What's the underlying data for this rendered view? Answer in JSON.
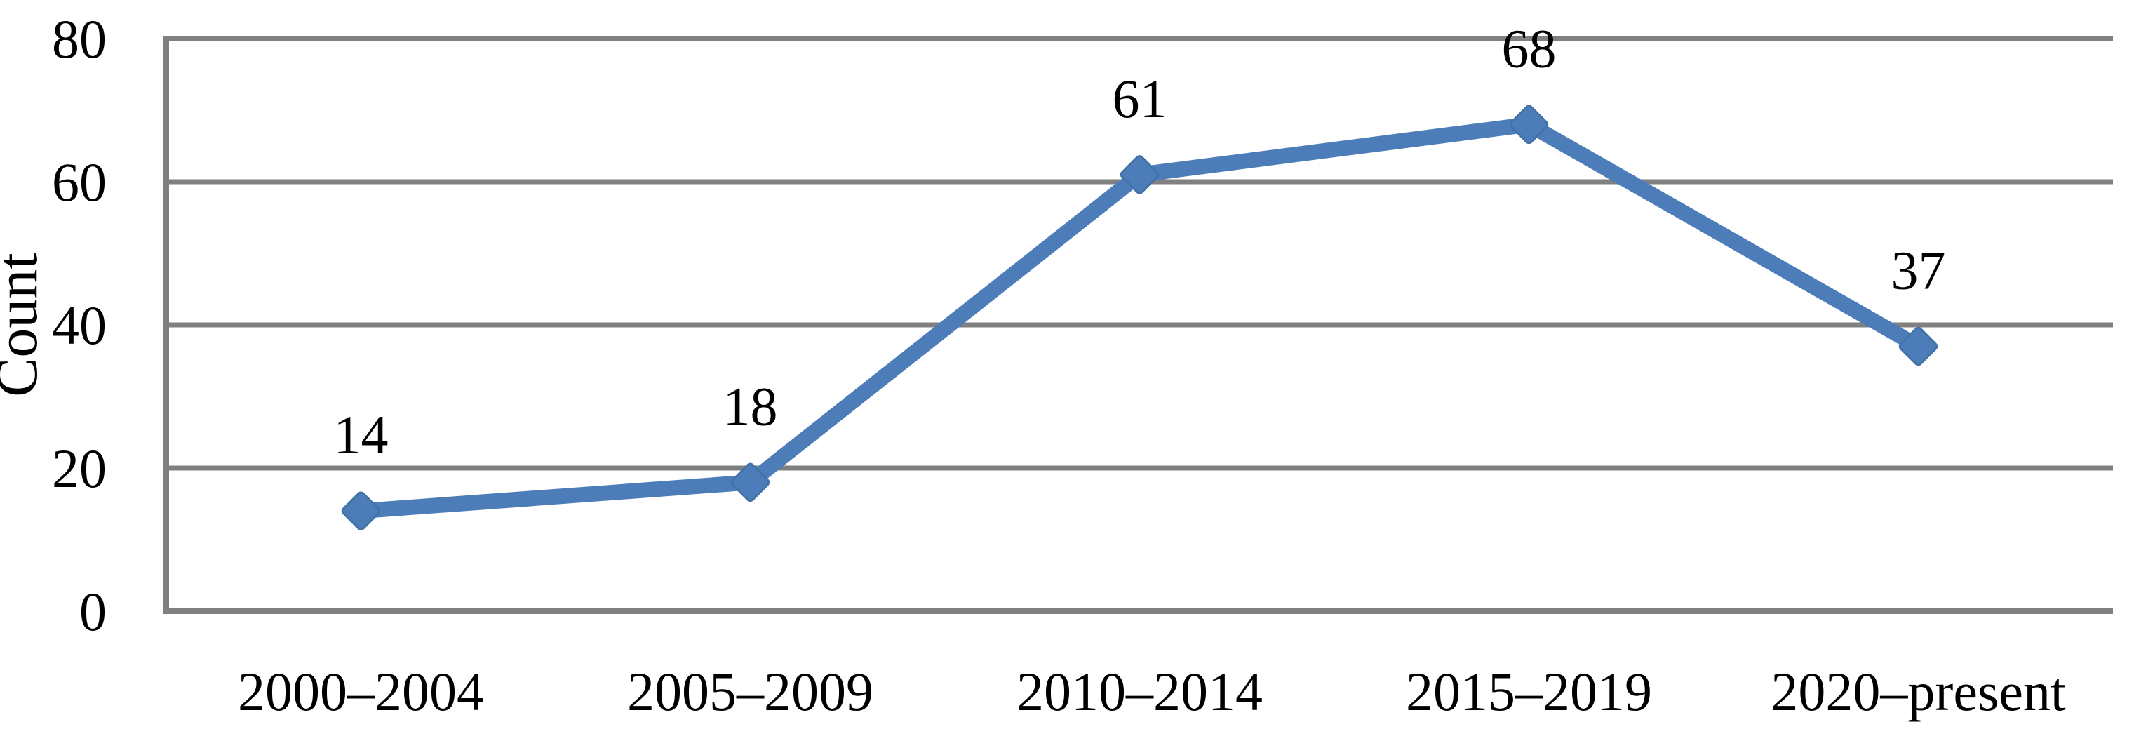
{
  "figure": {
    "background": "#ffffff"
  },
  "chart_data": {
    "type": "line",
    "title": "",
    "xlabel": "",
    "ylabel": "Count",
    "categories": [
      "2000–2004",
      "2005–2009",
      "2010–2014",
      "2015–2019",
      "2020–present"
    ],
    "series": [
      {
        "name": "Count",
        "values": [
          14,
          18,
          61,
          68,
          37
        ]
      }
    ],
    "data_labels": [
      "14",
      "18",
      "61",
      "68",
      "37"
    ],
    "ylim": [
      0,
      80
    ],
    "yticks": [
      0,
      20,
      40,
      60,
      80
    ],
    "grid": "horizontal",
    "legend": "none",
    "marker": "diamond",
    "colors": {
      "line": "#4C7DB8",
      "marker_fill": "#4C7DB8",
      "marker_edge": "#4273A8",
      "gridline": "#808080",
      "axis": "#808080",
      "text": "#000000",
      "background": "#ffffff"
    }
  }
}
